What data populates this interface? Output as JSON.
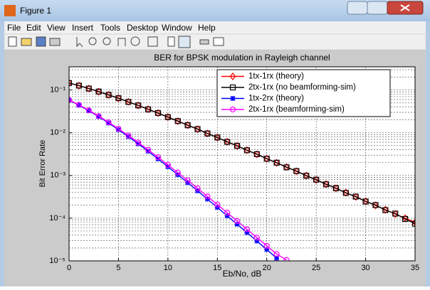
{
  "window": {
    "title": "Figure 1",
    "menu": [
      "File",
      "Edit",
      "View",
      "Insert",
      "Tools",
      "Desktop",
      "Window",
      "Help"
    ]
  },
  "chart_data": {
    "type": "line",
    "title": "BER for BPSK modulation in Rayleigh channel",
    "xlabel": "Eb/No, dB",
    "ylabel": "Bit Error Rate",
    "x": [
      0,
      1,
      2,
      3,
      4,
      5,
      6,
      7,
      8,
      9,
      10,
      11,
      12,
      13,
      14,
      15,
      16,
      17,
      18,
      19,
      20,
      21,
      22,
      23,
      24,
      25,
      26,
      27,
      28,
      29,
      30,
      31,
      32,
      33,
      34,
      35
    ],
    "xlim": [
      0,
      35
    ],
    "xticks": [
      0,
      5,
      10,
      15,
      20,
      25,
      30,
      35
    ],
    "ylim": [
      1e-05,
      0.35
    ],
    "yscale": "log",
    "yticks": [
      {
        "value": 1e-05,
        "label": "10⁻⁵"
      },
      {
        "value": 0.0001,
        "label": "10⁻⁴"
      },
      {
        "value": 0.001,
        "label": "10⁻³"
      },
      {
        "value": 0.01,
        "label": "10⁻²"
      },
      {
        "value": 0.1,
        "label": "10⁻¹"
      }
    ],
    "grid": true,
    "minor_grid": true,
    "legend": "upper right",
    "series": [
      {
        "name": "1tx-1rx (theory)",
        "color": "#ff0000",
        "marker": "diamond",
        "values": [
          0.1464,
          0.1267,
          0.1085,
          0.0919,
          0.0771,
          0.0642,
          0.053,
          0.0435,
          0.0355,
          0.0288,
          0.0233,
          0.0187,
          0.0151,
          0.0121,
          0.00966,
          0.00772,
          0.00616,
          0.00491,
          0.00392,
          0.00312,
          0.00248,
          0.00197,
          0.00157,
          0.00125,
          0.000993,
          0.000789,
          0.000627,
          0.000498,
          0.000396,
          0.000315,
          0.00025,
          0.000199,
          0.000158,
          0.000125,
          9.96e-05,
          7.91e-05
        ]
      },
      {
        "name": "2tx-1rx (no beamforming-sim)",
        "color": "#000000",
        "marker": "square",
        "values": [
          0.1461,
          0.127,
          0.1083,
          0.0921,
          0.0769,
          0.0644,
          0.0528,
          0.0437,
          0.0354,
          0.029,
          0.0232,
          0.0188,
          0.015,
          0.0122,
          0.00963,
          0.00775,
          0.00612,
          0.00494,
          0.00389,
          0.00315,
          0.00246,
          0.00199,
          0.00155,
          0.00127,
          0.000985,
          0.000795,
          0.00062,
          0.000503,
          0.00039,
          0.00032,
          0.000245,
          0.000203,
          0.000154,
          0.000128,
          9.6e-05,
          7.4e-05
        ]
      },
      {
        "name": "1tx-2rx (theory)",
        "color": "#0000ff",
        "marker": "star",
        "values": [
          0.058,
          0.0441,
          0.0328,
          0.0238,
          0.0169,
          0.0118,
          0.00813,
          0.00551,
          0.00369,
          0.00244,
          0.0016,
          0.00104,
          0.000677,
          0.000436,
          0.000278,
          0.000178,
          0.000113,
          7.21e-05,
          4.6e-05,
          2.91e-05,
          1.84e-05,
          1.16e-05,
          null,
          null,
          null,
          null,
          null,
          null,
          null,
          null,
          null,
          null,
          null,
          null,
          null,
          null
        ]
      },
      {
        "name": "2tx-1rx (beamforming-sim)",
        "color": "#ff00ff",
        "marker": "circle",
        "values": [
          0.059,
          0.045,
          0.0336,
          0.0246,
          0.0176,
          0.0124,
          0.00865,
          0.00592,
          0.004,
          0.00268,
          0.00178,
          0.00117,
          0.00077,
          0.0005,
          0.000322,
          0.000208,
          0.000134,
          8.6e-05,
          5.5e-05,
          3.5e-05,
          2.25e-05,
          1.45e-05,
          1.05e-05,
          null,
          null,
          null,
          null,
          null,
          null,
          null,
          null,
          null,
          null,
          null,
          null,
          null
        ]
      }
    ]
  }
}
